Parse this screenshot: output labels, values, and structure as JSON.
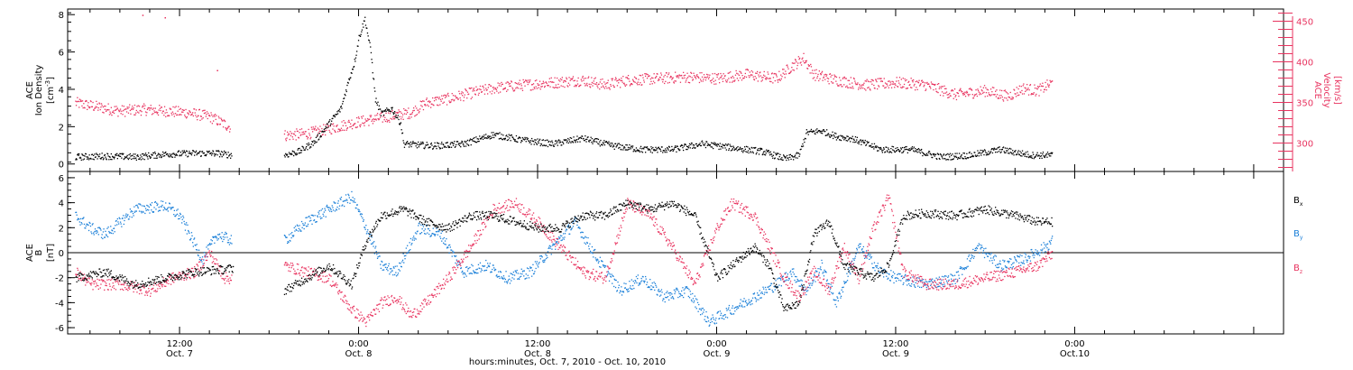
{
  "colors": {
    "black": "#000000",
    "red": "#e8335f",
    "blue": "#1a7fd8"
  },
  "x_axis": {
    "title": "hours:minutes, Oct.  7, 2010 - Oct. 10, 2010",
    "range_hours": [
      -19.5,
      62.0
    ],
    "ticks": [
      {
        "hours": -12,
        "time": "12:00",
        "date": "Oct. 7"
      },
      {
        "hours": 0,
        "time": "0:00",
        "date": "Oct. 8"
      },
      {
        "hours": 12,
        "time": "12:00",
        "date": "Oct. 8"
      },
      {
        "hours": 24,
        "time": "0:00",
        "date": "Oct. 9"
      },
      {
        "hours": 36,
        "time": "12:00",
        "date": "Oct. 9"
      },
      {
        "hours": 48,
        "time": "0:00",
        "date": "Oct.10"
      }
    ]
  },
  "chart_data": [
    {
      "type": "scatter",
      "panel": "density-velocity",
      "ylabel": [
        "ACE",
        "Ion Density"
      ],
      "yunit": "[cm",
      "yunit_sup": "-3",
      "yunit_end": "]",
      "ylim": [
        -0.4,
        8.3
      ],
      "yticks": [
        "0",
        "2",
        "4",
        "6",
        "8"
      ],
      "y2label": [
        "ACE",
        "Velocity"
      ],
      "y2unit": "[km/s]",
      "y2lim": [
        265,
        465
      ],
      "y2ticks": [
        "300",
        "350",
        "400",
        "450"
      ],
      "series": [
        {
          "axis": "left",
          "color": "#000000",
          "points": [
            [
              -19,
              0.4
            ],
            [
              -17,
              0.45
            ],
            [
              -15,
              0.4
            ],
            [
              -13,
              0.55
            ],
            [
              -11,
              0.6
            ],
            [
              -9.5,
              0.6
            ],
            [
              -8.5,
              0.5
            ],
            [
              -5,
              0.5
            ],
            [
              -4,
              0.7
            ],
            [
              -3,
              1.2
            ],
            [
              -2,
              2.2
            ],
            [
              -1.2,
              3.0
            ],
            [
              -0.8,
              4.2
            ],
            [
              -0.3,
              5.5
            ],
            [
              0,
              6.8
            ],
            [
              0.4,
              7.8
            ],
            [
              0.8,
              6.0
            ],
            [
              1.1,
              3.5
            ],
            [
              1.5,
              2.7
            ],
            [
              2.2,
              3.0
            ],
            [
              2.8,
              2.2
            ],
            [
              3,
              1.1
            ],
            [
              5,
              1.0
            ],
            [
              7,
              1.1
            ],
            [
              9,
              1.6
            ],
            [
              11,
              1.3
            ],
            [
              13,
              1.1
            ],
            [
              15,
              1.4
            ],
            [
              17,
              1.0
            ],
            [
              19,
              0.8
            ],
            [
              21,
              0.8
            ],
            [
              23,
              1.1
            ],
            [
              25,
              0.9
            ],
            [
              27,
              0.7
            ],
            [
              28.6,
              0.3
            ],
            [
              29.5,
              0.5
            ],
            [
              30,
              1.7
            ],
            [
              31,
              1.8
            ],
            [
              32,
              1.5
            ],
            [
              33,
              1.4
            ],
            [
              35,
              0.8
            ],
            [
              37,
              0.8
            ],
            [
              39,
              0.4
            ],
            [
              41,
              0.5
            ],
            [
              43,
              0.8
            ],
            [
              45,
              0.5
            ],
            [
              46.5,
              0.5
            ]
          ]
        },
        {
          "axis": "right",
          "color": "#e8335f",
          "points": [
            [
              -19,
              350
            ],
            [
              -17.5,
              345
            ],
            [
              -16,
              340
            ],
            [
              -14.5,
              342
            ],
            [
              -13,
              340
            ],
            [
              -11.5,
              338
            ],
            [
              -10,
              333
            ],
            [
              -8.6,
              320
            ],
            [
              -5,
              310
            ],
            [
              -3.5,
              312
            ],
            [
              -2,
              318
            ],
            [
              -0.5,
              325
            ],
            [
              1,
              330
            ],
            [
              2.5,
              335
            ],
            [
              3.5,
              338
            ],
            [
              4.5,
              350
            ],
            [
              6,
              355
            ],
            [
              7.5,
              362
            ],
            [
              9,
              368
            ],
            [
              11,
              372
            ],
            [
              13,
              375
            ],
            [
              15,
              378
            ],
            [
              16.5,
              372
            ],
            [
              18,
              378
            ],
            [
              20,
              380
            ],
            [
              22,
              382
            ],
            [
              24,
              380
            ],
            [
              26,
              385
            ],
            [
              28,
              380
            ],
            [
              29,
              395
            ],
            [
              29.8,
              405
            ],
            [
              30.5,
              385
            ],
            [
              32,
              378
            ],
            [
              34,
              372
            ],
            [
              36,
              375
            ],
            [
              38,
              372
            ],
            [
              40,
              360
            ],
            [
              42,
              365
            ],
            [
              43.5,
              358
            ],
            [
              44.5,
              368
            ],
            [
              45.5,
              365
            ],
            [
              46.5,
              375
            ]
          ]
        }
      ]
    },
    {
      "type": "scatter",
      "panel": "magnetic-field",
      "ylabel": [
        "ACE",
        "B"
      ],
      "yunit": "[nT]",
      "ylim": [
        -6.5,
        6.5
      ],
      "yticks": [
        "-6",
        "-4",
        "-2",
        "0",
        "2",
        "4",
        "6"
      ],
      "series": [
        {
          "name": "B",
          "subscript": "x",
          "color": "#000000",
          "points": [
            [
              -19,
              -2.0
            ],
            [
              -17,
              -1.5
            ],
            [
              -15,
              -2.5
            ],
            [
              -13,
              -2.0
            ],
            [
              -11,
              -1.5
            ],
            [
              -9,
              -1.3
            ],
            [
              -8.4,
              -1.2
            ],
            [
              -5,
              -3.0
            ],
            [
              -3.5,
              -2.0
            ],
            [
              -2,
              -1.0
            ],
            [
              -0.5,
              -2.5
            ],
            [
              0.5,
              1.0
            ],
            [
              1.5,
              3.0
            ],
            [
              3,
              3.5
            ],
            [
              4.5,
              2.5
            ],
            [
              6,
              2.0
            ],
            [
              7.5,
              3.0
            ],
            [
              9,
              3.0
            ],
            [
              10.5,
              2.5
            ],
            [
              12,
              2.0
            ],
            [
              13.5,
              2.0
            ],
            [
              15,
              3.0
            ],
            [
              16.5,
              3.0
            ],
            [
              18,
              4.0
            ],
            [
              19.5,
              3.5
            ],
            [
              21,
              4.0
            ],
            [
              22.5,
              3.0
            ],
            [
              24,
              -2.0
            ],
            [
              25,
              -1.0
            ],
            [
              26.5,
              0.5
            ],
            [
              27.5,
              -1.0
            ],
            [
              28.5,
              -4.5
            ],
            [
              29.5,
              -4.0
            ],
            [
              30.5,
              1.5
            ],
            [
              31.5,
              2.5
            ],
            [
              32.5,
              -1.0
            ],
            [
              33.5,
              -1.5
            ],
            [
              34.5,
              -2.0
            ],
            [
              35.5,
              -1.0
            ],
            [
              36.5,
              3.0
            ],
            [
              38,
              3.2
            ],
            [
              40,
              3.0
            ],
            [
              42,
              3.5
            ],
            [
              44,
              3.0
            ],
            [
              45.5,
              2.5
            ],
            [
              46.5,
              2.5
            ]
          ]
        },
        {
          "name": "B",
          "subscript": "y",
          "color": "#1a7fd8",
          "points": [
            [
              -19,
              3.0
            ],
            [
              -18,
              2.0
            ],
            [
              -17,
              1.5
            ],
            [
              -15,
              3.5
            ],
            [
              -13,
              3.8
            ],
            [
              -12,
              3.0
            ],
            [
              -10.5,
              -0.5
            ],
            [
              -9.5,
              1.5
            ],
            [
              -8.5,
              1.0
            ],
            [
              -5,
              1.0
            ],
            [
              -3.5,
              2.5
            ],
            [
              -2,
              3.5
            ],
            [
              -0.5,
              4.5
            ],
            [
              0.5,
              2.0
            ],
            [
              1.5,
              -1.0
            ],
            [
              2.5,
              -1.5
            ],
            [
              4,
              2.0
            ],
            [
              5.5,
              1.5
            ],
            [
              7,
              -1.5
            ],
            [
              8.5,
              -1.0
            ],
            [
              10,
              -2.0
            ],
            [
              11.5,
              -1.5
            ],
            [
              13,
              0.5
            ],
            [
              14.5,
              2.5
            ],
            [
              16,
              -0.5
            ],
            [
              17.5,
              -3.0
            ],
            [
              19,
              -2.0
            ],
            [
              20.5,
              -3.5
            ],
            [
              22,
              -3.0
            ],
            [
              23.5,
              -5.5
            ],
            [
              25,
              -4.5
            ],
            [
              26.5,
              -3.5
            ],
            [
              28,
              -2.5
            ],
            [
              29,
              -1.5
            ],
            [
              30,
              -3.0
            ],
            [
              31,
              -1.0
            ],
            [
              32,
              -4.0
            ],
            [
              33.5,
              0.5
            ],
            [
              35,
              -1.5
            ],
            [
              36,
              -2.0
            ],
            [
              38,
              -2.5
            ],
            [
              40,
              -2.0
            ],
            [
              41.5,
              0.5
            ],
            [
              43,
              -1.0
            ],
            [
              44.5,
              -0.5
            ],
            [
              46,
              0.5
            ],
            [
              46.5,
              1.0
            ]
          ]
        },
        {
          "name": "B",
          "subscript": "z",
          "color": "#e8335f",
          "points": [
            [
              -19,
              -1.5
            ],
            [
              -18,
              -2.5
            ],
            [
              -16,
              -2.5
            ],
            [
              -14,
              -3.0
            ],
            [
              -12.5,
              -2.0
            ],
            [
              -11,
              -1.5
            ],
            [
              -10,
              0.0
            ],
            [
              -9,
              -2.0
            ],
            [
              -8.5,
              -2.0
            ],
            [
              -5,
              -1.0
            ],
            [
              -3.5,
              -1.5
            ],
            [
              -2,
              -2.0
            ],
            [
              -0.5,
              -4.5
            ],
            [
              0.5,
              -5.5
            ],
            [
              1.5,
              -4.0
            ],
            [
              2.5,
              -3.5
            ],
            [
              3.5,
              -5.0
            ],
            [
              4.5,
              -4.0
            ],
            [
              6,
              -2.0
            ],
            [
              7.5,
              0.5
            ],
            [
              9,
              3.5
            ],
            [
              10.5,
              4.0
            ],
            [
              12,
              2.5
            ],
            [
              13.5,
              0.5
            ],
            [
              15,
              -1.5
            ],
            [
              16.5,
              -2.0
            ],
            [
              18,
              4.0
            ],
            [
              19.5,
              3.0
            ],
            [
              21,
              0.5
            ],
            [
              22.5,
              -2.5
            ],
            [
              24,
              2.0
            ],
            [
              25,
              4.0
            ],
            [
              26.5,
              3.0
            ],
            [
              27.5,
              0.5
            ],
            [
              28.5,
              -2.0
            ],
            [
              29.5,
              -3.5
            ],
            [
              30.5,
              -1.5
            ],
            [
              31.5,
              -3.0
            ],
            [
              32.5,
              0.5
            ],
            [
              33.5,
              -2.0
            ],
            [
              34.5,
              2.0
            ],
            [
              35.5,
              4.5
            ],
            [
              36.5,
              -1.5
            ],
            [
              38,
              -2.5
            ],
            [
              40,
              -2.5
            ],
            [
              42,
              -2.0
            ],
            [
              44,
              -1.5
            ],
            [
              45.5,
              -1.0
            ],
            [
              46.5,
              0.0
            ]
          ]
        }
      ]
    }
  ]
}
